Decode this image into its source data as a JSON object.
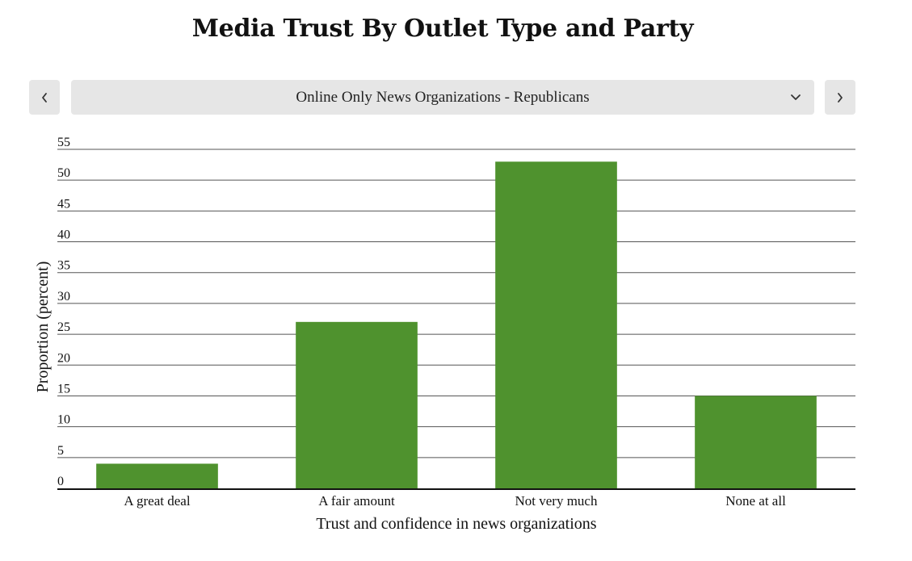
{
  "page": {
    "title": "Media Trust By Outlet Type and Party"
  },
  "controls": {
    "selected_option": "Online Only News Organizations - Republicans",
    "prev_icon": "chevron-left-icon",
    "next_icon": "chevron-right-icon",
    "dropdown_icon": "chevron-down-icon",
    "button_color": "#e6e6e6"
  },
  "chart_data": {
    "type": "bar",
    "title": "",
    "xlabel": "Trust and confidence in news organizations",
    "ylabel": "Proportion (percent)",
    "categories": [
      "A great deal",
      "A fair amount",
      "Not very much",
      "None at all"
    ],
    "values": [
      4,
      27,
      53,
      15
    ],
    "ylim": [
      0,
      55
    ],
    "yticks": [
      0,
      5,
      10,
      15,
      20,
      25,
      30,
      35,
      40,
      45,
      50,
      55
    ],
    "grid": true,
    "bar_color": "#4f922e",
    "grid_color": "#555555"
  }
}
